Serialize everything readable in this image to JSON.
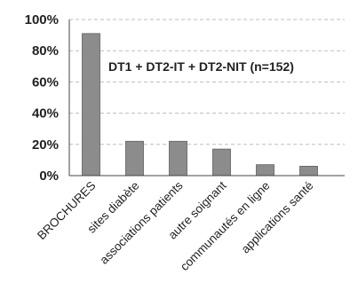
{
  "chart_data": {
    "type": "bar",
    "categories": [
      "BROCHURES",
      "sites diabète",
      "associations patients",
      "autre soignant",
      "communautés en ligne",
      "applications santé"
    ],
    "values": [
      91,
      22,
      22,
      17,
      7,
      6
    ],
    "ylim": [
      0,
      100
    ],
    "yticks": [
      0,
      20,
      40,
      60,
      80,
      100
    ],
    "ytick_labels": [
      "0%",
      "20%",
      "40%",
      "60%",
      "80%",
      "100%"
    ],
    "annotation": "DT1   + DT2-IT + DT2-NIT (n=152)",
    "grid": true,
    "bar_color": "#8c8c8c",
    "bar_edge_color": "#5e5e5e",
    "grid_color": "#bdbdbd",
    "axis_color": "#444444"
  }
}
